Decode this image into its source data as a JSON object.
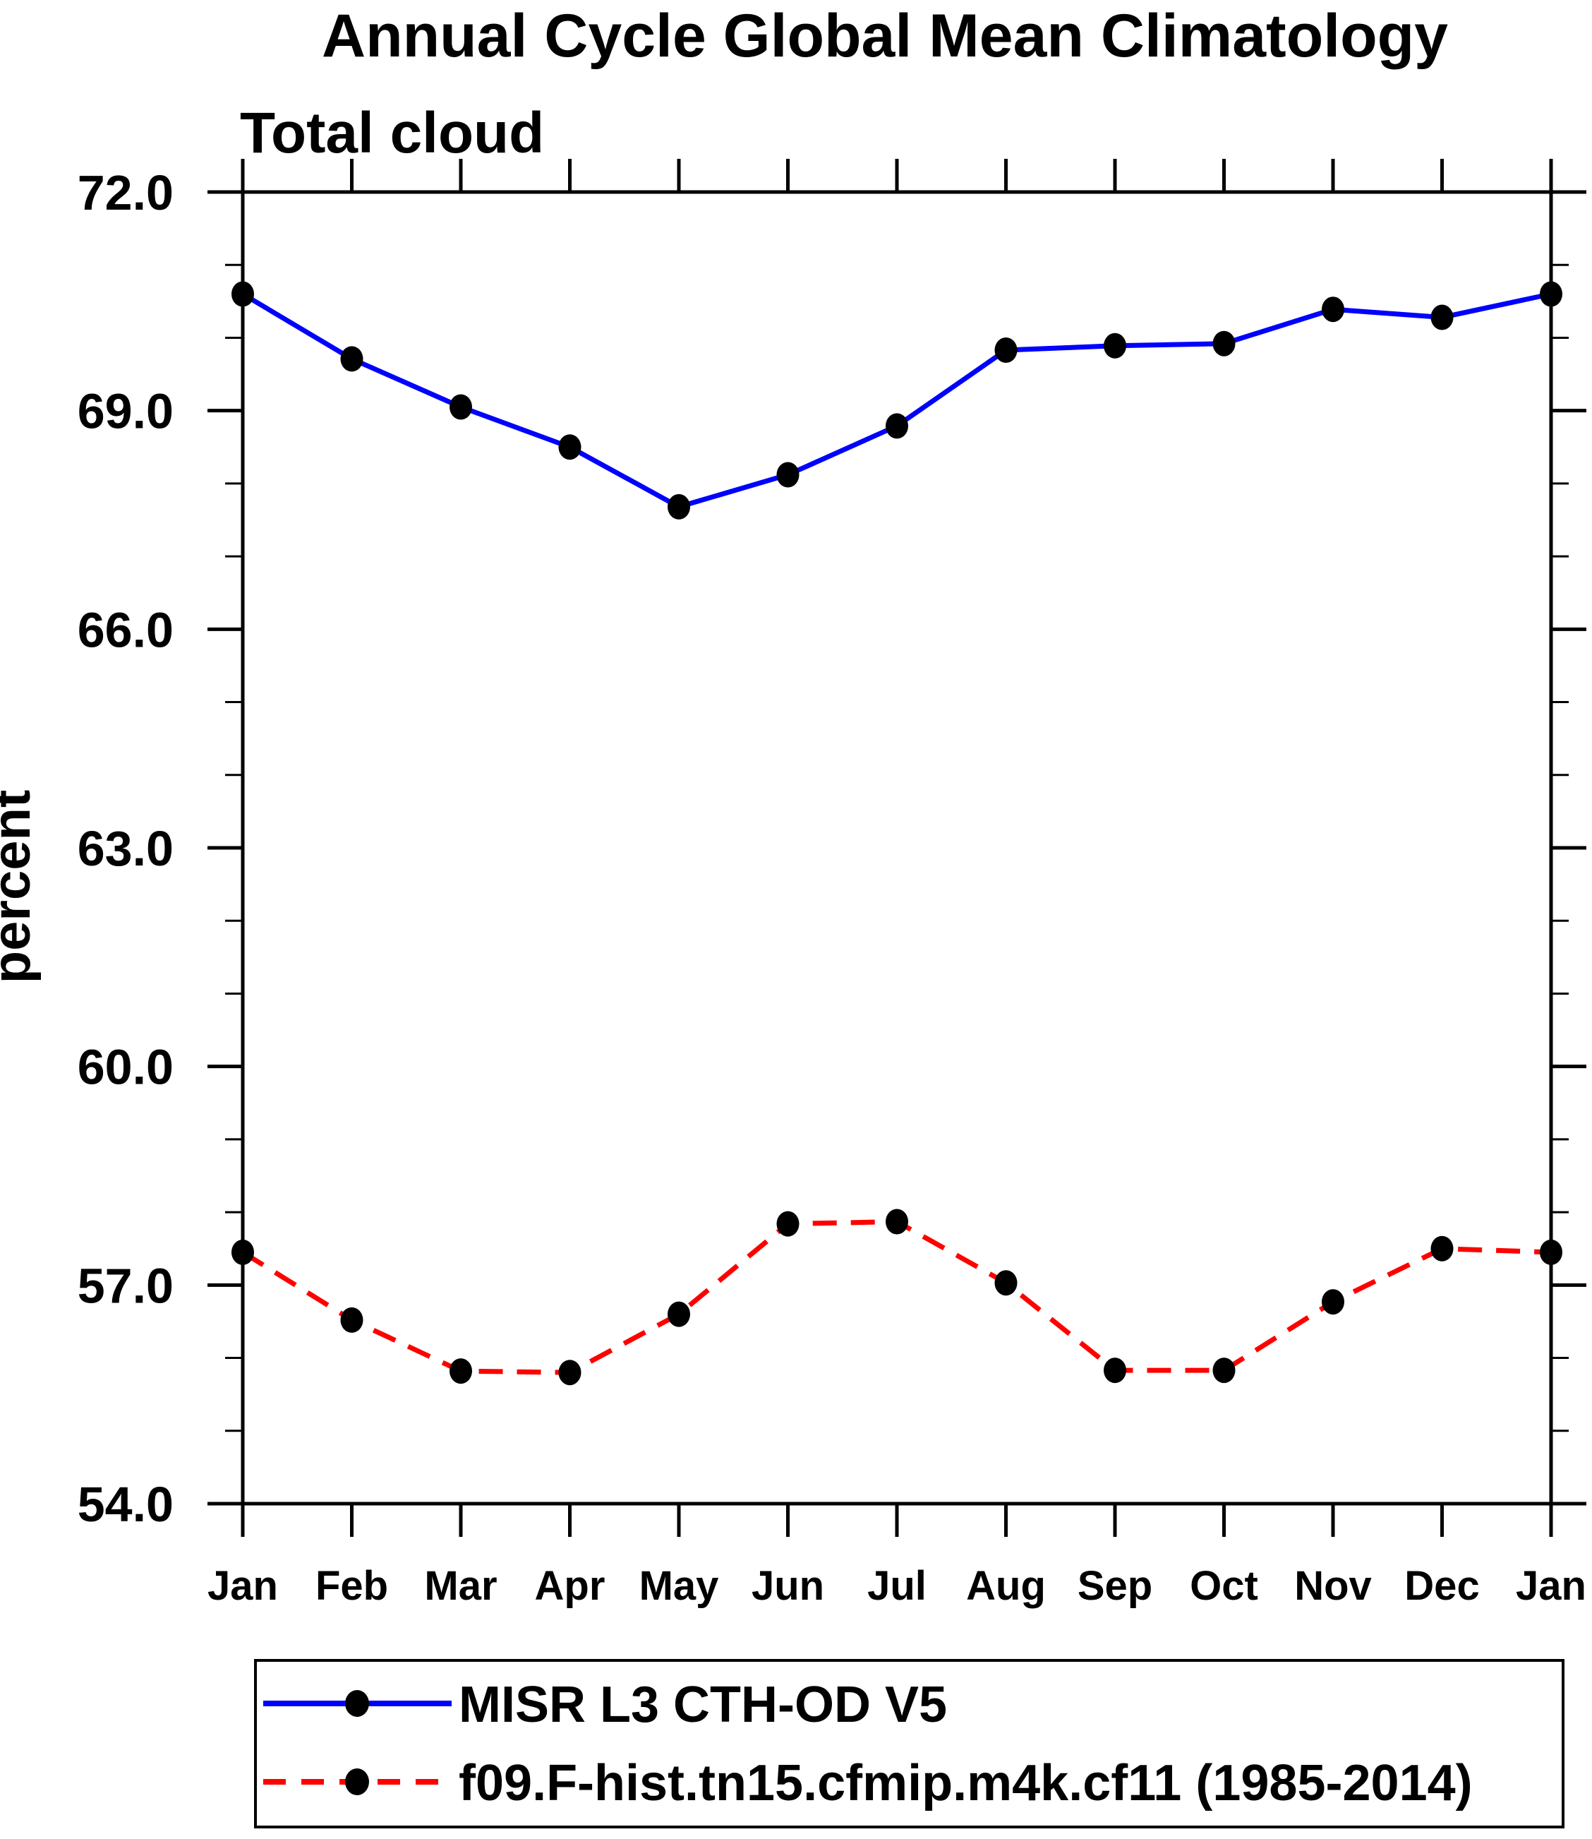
{
  "page": {
    "background": "#ffffff"
  },
  "header": {
    "title": "Annual Cycle Global Mean Climatology",
    "subtitle": "Total cloud"
  },
  "y_axis": {
    "label": "percent",
    "tick_labels": [
      "72.0",
      "69.0",
      "66.0",
      "63.0",
      "60.0",
      "57.0",
      "54.0"
    ],
    "tick_values": [
      72,
      69,
      66,
      63,
      60,
      57,
      54
    ],
    "minor_tick_step": 1
  },
  "x_axis": {
    "labels": [
      "Jan",
      "Feb",
      "Mar",
      "Apr",
      "May",
      "Jun",
      "Jul",
      "Aug",
      "Sep",
      "Oct",
      "Nov",
      "Dec",
      "Jan"
    ]
  },
  "legend": {
    "items": [
      {
        "label": "MISR L3 CTH-OD V5",
        "color": "#0000ff",
        "line_style": "solid",
        "marker": "filled-circle-icon"
      },
      {
        "label": "f09.F-hist.tn15.cfmip.m4k.cf11 (1985-2014)",
        "color": "#ff0000",
        "line_style": "dashed",
        "marker": "filled-circle-icon"
      }
    ]
  },
  "chart_data": {
    "type": "line",
    "title": "Annual Cycle Global Mean Climatology",
    "subtitle": "Total cloud",
    "xlabel": "",
    "ylabel": "percent",
    "categories": [
      "Jan",
      "Feb",
      "Mar",
      "Apr",
      "May",
      "Jun",
      "Jul",
      "Aug",
      "Sep",
      "Oct",
      "Nov",
      "Dec",
      "Jan"
    ],
    "series": [
      {
        "name": "MISR L3 CTH-OD V5",
        "color": "#0000ff",
        "line_style": "solid",
        "marker_color": "#000000",
        "values": [
          70.6,
          69.71,
          69.05,
          68.5,
          67.68,
          68.12,
          68.79,
          69.83,
          69.89,
          69.92,
          70.39,
          70.28,
          70.6
        ]
      },
      {
        "name": "f09.F-hist.tn15.cfmip.m4k.cf11 (1985-2014)",
        "color": "#ff0000",
        "line_style": "dashed",
        "marker_color": "#000000",
        "values": [
          57.45,
          56.52,
          55.82,
          55.8,
          56.6,
          57.84,
          57.87,
          57.03,
          55.83,
          55.83,
          56.77,
          57.5,
          57.45
        ]
      }
    ],
    "ylim": [
      54.0,
      72.0
    ],
    "ytick_major": [
      54,
      57,
      60,
      63,
      66,
      69,
      72
    ],
    "ytick_major_labels": [
      "54.0",
      "57.0",
      "60.0",
      "63.0",
      "66.0",
      "69.0",
      "72.0"
    ],
    "ytick_minor_step": 1,
    "grid": false,
    "legend_position": "bottom-box",
    "axis_color": "#000000",
    "marker_shape": "circle"
  }
}
